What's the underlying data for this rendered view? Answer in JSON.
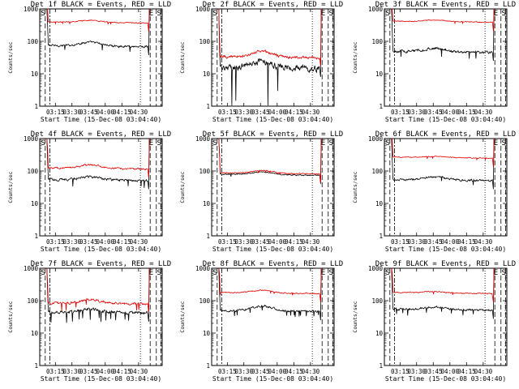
{
  "chart_data": [
    {
      "type": "line",
      "title": "Det 1f BLACK = Events, RED = LLD",
      "xlabel": "Start Time (15-Dec-08 03:04:40)",
      "ylabel": "Counts/sec",
      "yscale": "log",
      "ylim": [
        1,
        1000
      ],
      "xtick_labels": [
        "03:15",
        "03:30",
        "03:45",
        "04:00",
        "04:15",
        "04:30"
      ],
      "ytick_labels": [
        "1",
        "10",
        "100",
        "1000"
      ],
      "markers": {
        "start": "S",
        "end": "E",
        "end2": "S"
      },
      "series": [
        {
          "name": "Events",
          "color": "#000000",
          "level": 75,
          "bump": 1.3,
          "noise": 0.12
        },
        {
          "name": "LLD",
          "color": "#e00000",
          "level": 400,
          "bump": 1.15,
          "noise": 0.05
        }
      ]
    },
    {
      "type": "line",
      "title": "Det 2f BLACK = Events, RED = LLD",
      "xlabel": "Start Time (15-Dec-08 03:04:40)",
      "ylabel": "Counts/sec",
      "yscale": "log",
      "ylim": [
        1,
        1000
      ],
      "xtick_labels": [
        "03:15",
        "03:30",
        "03:45",
        "04:00",
        "04:15",
        "04:30"
      ],
      "ytick_labels": [
        "1",
        "10",
        "100",
        "1000"
      ],
      "markers": {
        "start": "S",
        "end": "E",
        "end2": "S"
      },
      "series": [
        {
          "name": "Events",
          "color": "#000000",
          "level": 16,
          "bump": 1.6,
          "noise": 0.35
        },
        {
          "name": "LLD",
          "color": "#e00000",
          "level": 34,
          "bump": 1.5,
          "noise": 0.15
        }
      ]
    },
    {
      "type": "line",
      "title": "Det 3f BLACK = Events, RED = LLD",
      "xlabel": "Start Time (15-Dec-08 03:04:40)",
      "ylabel": "Counts/sec",
      "yscale": "log",
      "ylim": [
        1,
        1000
      ],
      "xtick_labels": [
        "03:15",
        "03:30",
        "03:45",
        "04:00",
        "04:15",
        "04:30"
      ],
      "ytick_labels": [
        "1",
        "10",
        "100",
        "1000"
      ],
      "markers": {
        "start": "S",
        "end": "E",
        "end2": "S"
      },
      "series": [
        {
          "name": "Events",
          "color": "#000000",
          "level": 50,
          "bump": 1.25,
          "noise": 0.15
        },
        {
          "name": "LLD",
          "color": "#e00000",
          "level": 420,
          "bump": 1.12,
          "noise": 0.05
        }
      ]
    },
    {
      "type": "line",
      "title": "Det 4f BLACK = Events, RED = LLD",
      "xlabel": "Start Time (15-Dec-08 03:04:40)",
      "ylabel": "Counts/sec",
      "yscale": "log",
      "ylim": [
        1,
        1000
      ],
      "xtick_labels": [
        "03:15",
        "03:30",
        "03:45",
        "04:00",
        "04:15",
        "04:30"
      ],
      "ytick_labels": [
        "1",
        "10",
        "100",
        "1000"
      ],
      "markers": {
        "start": "S",
        "end": "E",
        "end2": "S"
      },
      "series": [
        {
          "name": "Events",
          "color": "#000000",
          "level": 55,
          "bump": 1.25,
          "noise": 0.14
        },
        {
          "name": "LLD",
          "color": "#e00000",
          "level": 125,
          "bump": 1.3,
          "noise": 0.1
        }
      ]
    },
    {
      "type": "line",
      "title": "Det 5f BLACK = Events, RED = LLD",
      "xlabel": "Start Time (15-Dec-08 03:04:40)",
      "ylabel": "Counts/sec",
      "yscale": "log",
      "ylim": [
        1,
        1000
      ],
      "xtick_labels": [
        "03:15",
        "03:30",
        "03:45",
        "04:00",
        "04:15",
        "04:30"
      ],
      "ytick_labels": [
        "1",
        "10",
        "100",
        "1000"
      ],
      "markers": {
        "start": "S",
        "end": "E",
        "end2": "S"
      },
      "series": [
        {
          "name": "Events",
          "color": "#000000",
          "level": 80,
          "bump": 1.22,
          "noise": 0.06
        },
        {
          "name": "LLD",
          "color": "#e00000",
          "level": 88,
          "bump": 1.22,
          "noise": 0.05
        }
      ]
    },
    {
      "type": "line",
      "title": "Det 6f BLACK = Events, RED = LLD",
      "xlabel": "Start Time (15-Dec-08 03:04:40)",
      "ylabel": "Counts/sec",
      "yscale": "log",
      "ylim": [
        1,
        1000
      ],
      "xtick_labels": [
        "03:15",
        "03:30",
        "03:45",
        "04:00",
        "04:15",
        "04:30"
      ],
      "ytick_labels": [
        "1",
        "10",
        "100",
        "1000"
      ],
      "markers": {
        "start": "S",
        "end": "E",
        "end2": "S"
      },
      "series": [
        {
          "name": "Events",
          "color": "#000000",
          "level": 55,
          "bump": 1.25,
          "noise": 0.12
        },
        {
          "name": "LLD",
          "color": "#e00000",
          "level": 270,
          "bump": 1.08,
          "noise": 0.05
        }
      ]
    },
    {
      "type": "line",
      "title": "Det 7f BLACK = Events, RED = LLD",
      "xlabel": "Start Time (15-Dec-08 03:04:40)",
      "ylabel": "Counts/sec",
      "yscale": "log",
      "ylim": [
        1,
        1000
      ],
      "xtick_labels": [
        "03:15",
        "03:30",
        "03:45",
        "04:00",
        "04:15",
        "04:30"
      ],
      "ytick_labels": [
        "1",
        "10",
        "100",
        "1000"
      ],
      "markers": {
        "start": "S",
        "end": "E",
        "end2": "S"
      },
      "series": [
        {
          "name": "Events",
          "color": "#000000",
          "level": 45,
          "bump": 1.25,
          "noise": 0.18
        },
        {
          "name": "LLD",
          "color": "#e00000",
          "level": 85,
          "bump": 1.3,
          "noise": 0.14
        }
      ]
    },
    {
      "type": "line",
      "title": "Det 8f BLACK = Events, RED = LLD",
      "xlabel": "Start Time (15-Dec-08 03:04:40)",
      "ylabel": "Counts/sec",
      "yscale": "log",
      "ylim": [
        1,
        1000
      ],
      "xtick_labels": [
        "03:15",
        "03:30",
        "03:45",
        "04:00",
        "04:15",
        "04:30"
      ],
      "ytick_labels": [
        "1",
        "10",
        "100",
        "1000"
      ],
      "markers": {
        "start": "S",
        "end": "E",
        "end2": "S"
      },
      "series": [
        {
          "name": "Events",
          "color": "#000000",
          "level": 50,
          "bump": 1.4,
          "noise": 0.12
        },
        {
          "name": "LLD",
          "color": "#e00000",
          "level": 180,
          "bump": 1.2,
          "noise": 0.06
        }
      ]
    },
    {
      "type": "line",
      "title": "Det 9f BLACK = Events, RED = LLD",
      "xlabel": "Start Time (15-Dec-08 03:04:40)",
      "ylabel": "Counts/sec",
      "yscale": "log",
      "ylim": [
        1,
        1000
      ],
      "xtick_labels": [
        "03:15",
        "03:30",
        "03:45",
        "04:00",
        "04:15",
        "04:30"
      ],
      "ytick_labels": [
        "1",
        "10",
        "100",
        "1000"
      ],
      "markers": {
        "start": "S",
        "end": "E",
        "end2": "S"
      },
      "series": [
        {
          "name": "Events",
          "color": "#000000",
          "level": 55,
          "bump": 1.2,
          "noise": 0.12
        },
        {
          "name": "LLD",
          "color": "#e00000",
          "level": 180,
          "bump": 1.1,
          "noise": 0.06
        }
      ]
    }
  ]
}
